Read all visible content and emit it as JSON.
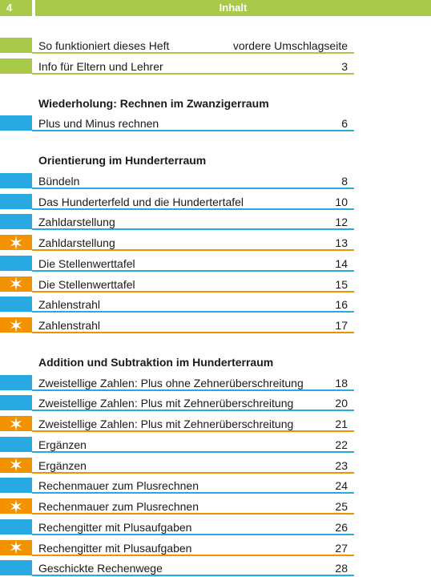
{
  "header": {
    "page_number": 4,
    "title": "Inhalt"
  },
  "sections": [
    {
      "entries": [
        {
          "title": "So funktioniert dieses Heft",
          "page": "vordere Umschlagseite",
          "color": "#a9c94a"
        },
        {
          "title": "Info für Eltern und Lehrer",
          "page": 3,
          "color": "#a9c94a"
        }
      ]
    },
    {
      "heading": "Wiederholung: Rechnen im Zwanzigerraum",
      "entries": [
        {
          "title": "Plus und Minus rechnen",
          "page": 6,
          "color": "#29a9e1"
        }
      ]
    },
    {
      "heading": "Orientierung im Hunderterraum",
      "entries": [
        {
          "title": "Bündeln",
          "page": 8,
          "color": "#29a9e1"
        },
        {
          "title": "Das Hunderterfeld und die Hundertertafel",
          "page": 10,
          "color": "#29a9e1"
        },
        {
          "title": "Zahldarstellung",
          "page": 12,
          "color": "#29a9e1"
        },
        {
          "title": "Zahldarstellung",
          "page": 13,
          "color": "#f39200",
          "marker": "star"
        },
        {
          "title": "Die Stellenwerttafel",
          "page": 14,
          "color": "#29a9e1"
        },
        {
          "title": "Die Stellenwerttafel",
          "page": 15,
          "color": "#f39200",
          "marker": "star"
        },
        {
          "title": "Zahlenstrahl",
          "page": 16,
          "color": "#29a9e1"
        },
        {
          "title": "Zahlenstrahl",
          "page": 17,
          "color": "#f39200",
          "marker": "star"
        }
      ]
    },
    {
      "heading": "Addition und Subtraktion im Hunderterraum",
      "entries": [
        {
          "title": "Zweistellige Zahlen: Plus ohne Zehnerüberschreitung",
          "page": 18,
          "color": "#29a9e1"
        },
        {
          "title": "Zweistellige Zahlen: Plus mit Zehnerüberschreitung",
          "page": 20,
          "color": "#29a9e1"
        },
        {
          "title": "Zweistellige Zahlen: Plus mit Zehnerüberschreitung",
          "page": 21,
          "color": "#f39200",
          "marker": "star"
        },
        {
          "title": "Ergänzen",
          "page": 22,
          "color": "#29a9e1"
        },
        {
          "title": "Ergänzen",
          "page": 23,
          "color": "#f39200",
          "marker": "star"
        },
        {
          "title": "Rechenmauer zum Plusrechnen",
          "page": 24,
          "color": "#29a9e1"
        },
        {
          "title": "Rechenmauer zum Plusrechnen",
          "page": 25,
          "color": "#f39200",
          "marker": "star"
        },
        {
          "title": "Rechengitter mit Plusaufgaben",
          "page": 26,
          "color": "#29a9e1"
        },
        {
          "title": "Rechengitter mit Plusaufgaben",
          "page": 27,
          "color": "#f39200",
          "marker": "star"
        },
        {
          "title": "Geschickte Rechenwege",
          "page": 28,
          "color": "#29a9e1"
        }
      ]
    }
  ]
}
